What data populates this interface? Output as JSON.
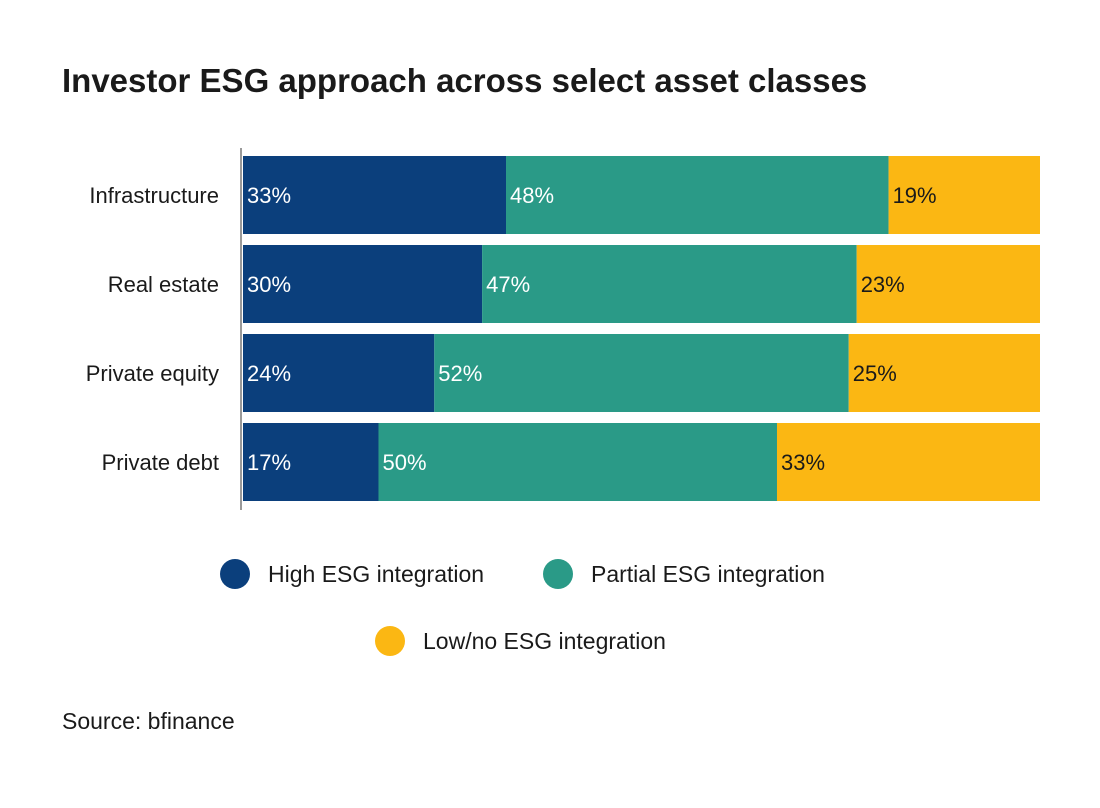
{
  "chart_data": {
    "type": "bar",
    "orientation": "horizontal",
    "stacked": true,
    "title": "Investor ESG approach across select asset classes",
    "categories": [
      "Infrastructure",
      "Real estate",
      "Private equity",
      "Private debt"
    ],
    "series": [
      {
        "name": "High ESG integration",
        "color": "#0b3f7c",
        "label_color": "#ffffff",
        "values": [
          33,
          30,
          24,
          17
        ]
      },
      {
        "name": "Partial ESG integration",
        "color": "#2a9a87",
        "label_color": "#ffffff",
        "values": [
          48,
          47,
          52,
          50
        ]
      },
      {
        "name": "Low/no ESG integration",
        "color": "#fbb713",
        "label_color": "#1a1a1a",
        "values": [
          19,
          23,
          25,
          33
        ]
      }
    ],
    "value_suffix": "%",
    "xlim": [
      0,
      100
    ],
    "grid": false,
    "legend_position": "bottom",
    "source": "Source: bfinance"
  }
}
